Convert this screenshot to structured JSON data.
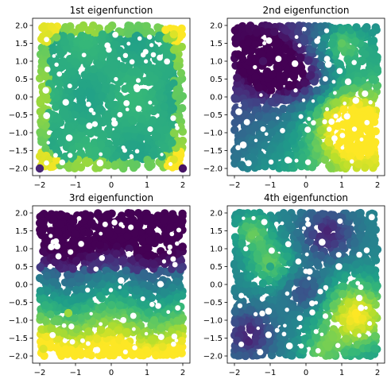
{
  "chart_data": [
    {
      "type": "scatter",
      "title": "1st eigenfunction",
      "xlim": [
        -2.2,
        2.2
      ],
      "ylim": [
        -2.2,
        2.2
      ],
      "xticks": [
        -2,
        -1,
        0,
        1,
        2
      ],
      "yticks": [
        -2.0,
        -1.5,
        -1.0,
        -0.5,
        0.0,
        0.5,
        1.0,
        1.5,
        2.0
      ],
      "xtick_labels": [
        "−2",
        "−1",
        "0",
        "1",
        "2"
      ],
      "ytick_labels": [
        "−2.0",
        "−1.5",
        "−1.0",
        "−0.5",
        "0.0",
        "0.5",
        "1.0",
        "1.5",
        "2.0"
      ],
      "colormap": "viridis",
      "point_color_pattern": "green interior, yellow rim strongest at the corners, dark dots at the extreme corners",
      "sample_points": [
        {
          "x": -1.75,
          "y": 1.75,
          "c": 0.95
        },
        {
          "x": 1.75,
          "y": 1.75,
          "c": 0.95
        },
        {
          "x": -1.75,
          "y": -1.75,
          "c": 0.95
        },
        {
          "x": 1.75,
          "y": -1.75,
          "c": 0.95
        },
        {
          "x": 2.0,
          "y": -2.0,
          "c": 0.05
        },
        {
          "x": -2.0,
          "y": -2.0,
          "c": 0.1
        },
        {
          "x": 0.0,
          "y": 0.0,
          "c": 0.62
        }
      ],
      "grid": false
    },
    {
      "type": "scatter",
      "title": "2nd eigenfunction",
      "xlim": [
        -2.2,
        2.2
      ],
      "ylim": [
        -2.2,
        2.2
      ],
      "xticks": [
        -2,
        -1,
        0,
        1,
        2
      ],
      "yticks": [
        -2.0,
        -1.5,
        -1.0,
        -0.5,
        0.0,
        0.5,
        1.0,
        1.5,
        2.0
      ],
      "xtick_labels": [
        "−2",
        "−1",
        "0",
        "1",
        "2"
      ],
      "ytick_labels": [
        "−2.0",
        "−1.5",
        "−1.0",
        "−0.5",
        "0.0",
        "0.5",
        "1.0",
        "1.5",
        "2.0"
      ],
      "colormap": "viridis",
      "point_color_pattern": "dark purple top-left, bright yellow bottom-right, teal elsewhere",
      "sample_points": [
        {
          "x": -1.2,
          "y": 1.0,
          "c": 0.05
        },
        {
          "x": -0.6,
          "y": 0.6,
          "c": 0.0
        },
        {
          "x": 1.3,
          "y": -0.8,
          "c": 1.0
        },
        {
          "x": 0.6,
          "y": -0.5,
          "c": 0.95
        },
        {
          "x": 1.0,
          "y": 1.5,
          "c": 0.75
        },
        {
          "x": -1.5,
          "y": -1.2,
          "c": 0.4
        }
      ],
      "grid": false
    },
    {
      "type": "scatter",
      "title": "3rd eigenfunction",
      "xlim": [
        -2.2,
        2.2
      ],
      "ylim": [
        -2.2,
        2.2
      ],
      "xticks": [
        -2,
        -1,
        0,
        1,
        2
      ],
      "yticks": [
        -2.0,
        -1.5,
        -1.0,
        -0.5,
        0.0,
        0.5,
        1.0,
        1.5,
        2.0
      ],
      "xtick_labels": [
        "−2",
        "−1",
        "0",
        "1",
        "2"
      ],
      "ytick_labels": [
        "−2.0",
        "−1.5",
        "−1.0",
        "−0.5",
        "0.0",
        "0.5",
        "1.0",
        "1.5",
        "2.0"
      ],
      "colormap": "viridis",
      "point_color_pattern": "dark purple top half, light green bottom half",
      "sample_points": [
        {
          "x": -1.5,
          "y": 0.8,
          "c": 0.02
        },
        {
          "x": 0.5,
          "y": 1.0,
          "c": 0.05
        },
        {
          "x": -1.2,
          "y": -0.8,
          "c": 0.85
        },
        {
          "x": 1.2,
          "y": -1.0,
          "c": 0.75
        },
        {
          "x": -1.9,
          "y": -1.8,
          "c": 0.95
        }
      ],
      "grid": false
    },
    {
      "type": "scatter",
      "title": "4th eigenfunction",
      "xlim": [
        -2.2,
        2.2
      ],
      "ylim": [
        -2.2,
        2.2
      ],
      "xticks": [
        -2,
        -1,
        0,
        1,
        2
      ],
      "yticks": [
        -2.0,
        -1.5,
        -1.0,
        -0.5,
        0.0,
        0.5,
        1.0,
        1.5,
        2.0
      ],
      "xtick_labels": [
        "−2",
        "−1",
        "0",
        "1",
        "2"
      ],
      "ytick_labels": [
        "−2.0",
        "−1.5",
        "−1.0",
        "−0.5",
        "0.0",
        "0.5",
        "1.0",
        "1.5",
        "2.0"
      ],
      "colormap": "viridis",
      "point_color_pattern": "four-lobed pattern: yellow bottom-right, dark purple bands",
      "sample_points": [
        {
          "x": 1.4,
          "y": -0.8,
          "c": 1.0
        },
        {
          "x": -1.0,
          "y": 0.5,
          "c": 0.6
        },
        {
          "x": 0.6,
          "y": 1.5,
          "c": 0.1
        },
        {
          "x": -1.6,
          "y": -1.6,
          "c": 0.1
        },
        {
          "x": 0.0,
          "y": 0.0,
          "c": 0.3
        }
      ],
      "grid": false
    }
  ]
}
